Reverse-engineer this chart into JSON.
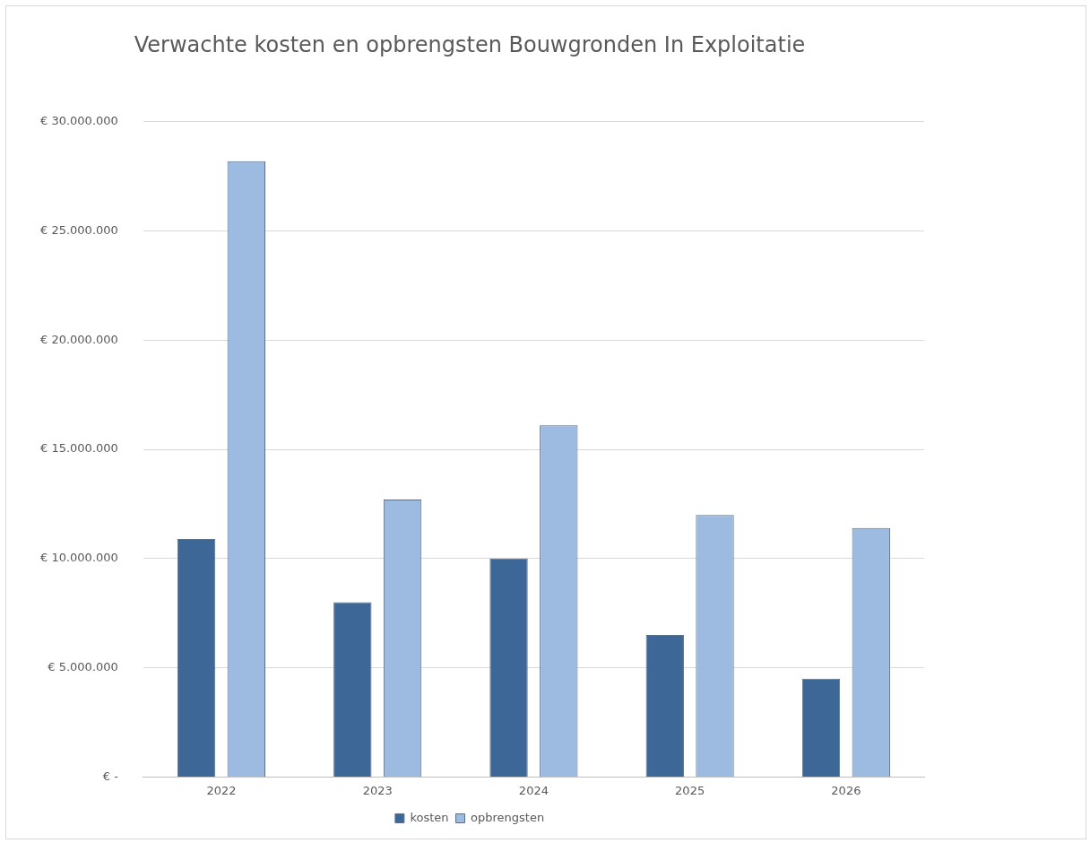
{
  "chart_data": {
    "type": "bar",
    "title": "Verwachte kosten en opbrengsten Bouwgronden In Exploitatie",
    "categories": [
      "2022",
      "2023",
      "2024",
      "2025",
      "2026"
    ],
    "series": [
      {
        "name": "kosten",
        "color": "#3d6797",
        "values": [
          10900000,
          8000000,
          10000000,
          6500000,
          4500000
        ]
      },
      {
        "name": "opbrengsten",
        "color": "#9dbbe1",
        "values": [
          28200000,
          12700000,
          16100000,
          12000000,
          11400000
        ]
      }
    ],
    "ylim": [
      0,
      30000000
    ],
    "yticks": [
      {
        "value": 0,
        "label": "€ -"
      },
      {
        "value": 5000000,
        "label": "€ 5.000.000"
      },
      {
        "value": 10000000,
        "label": "€ 10.000.000"
      },
      {
        "value": 15000000,
        "label": "€ 15.000.000"
      },
      {
        "value": 20000000,
        "label": "€ 20.000.000"
      },
      {
        "value": 25000000,
        "label": "€ 25.000.000"
      },
      {
        "value": 30000000,
        "label": "€ 30.000.000"
      }
    ],
    "grid": "y",
    "legend": "bottom"
  }
}
